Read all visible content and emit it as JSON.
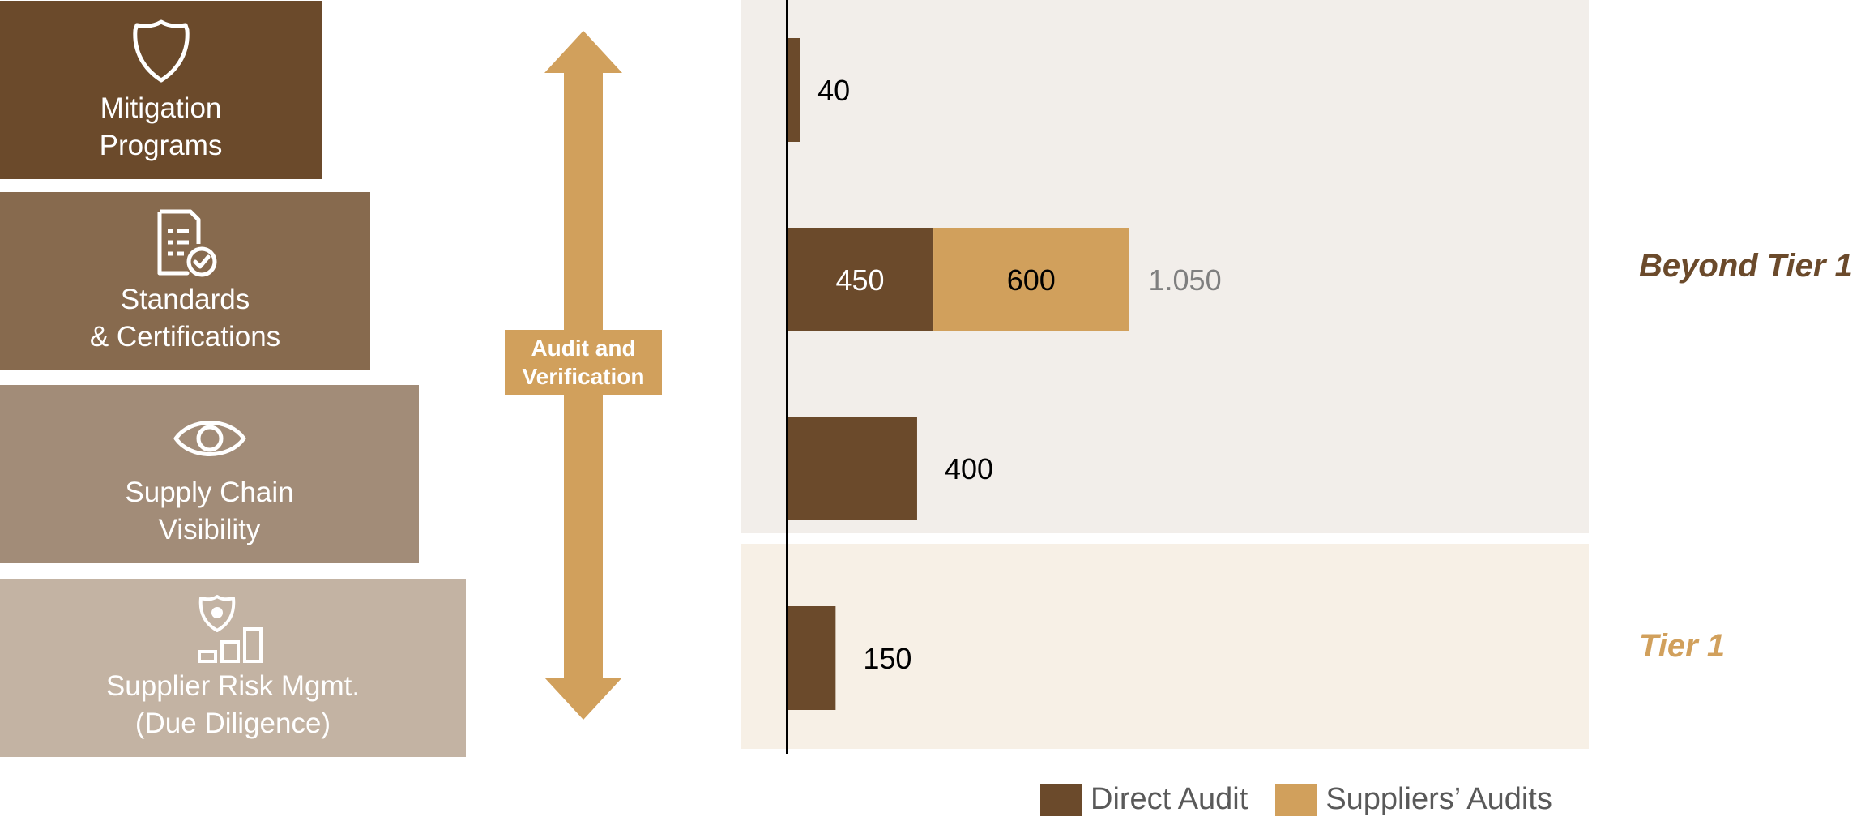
{
  "steps": [
    {
      "label": "Mitigation\nPrograms",
      "icon": "shield-icon",
      "color": "#6b4a2b"
    },
    {
      "label": "Standards\n& Certifications",
      "icon": "certified-document-icon",
      "color": "#876a4e"
    },
    {
      "label": "Supply Chain\nVisibility",
      "icon": "eye-icon",
      "color": "#a28c78"
    },
    {
      "label": "Supplier Risk Mgmt.\n(Due Diligence)",
      "icon": "risk-bar-chart-icon",
      "color": "#c3b3a3"
    }
  ],
  "arrow": {
    "label": "Audit and\nVerification",
    "color": "#d1a05c"
  },
  "groups": [
    {
      "label": "Beyond Tier 1",
      "color": "#6b4a2b",
      "band_color": "#f2eeea"
    },
    {
      "label": "Tier 1",
      "color": "#d1a05c",
      "band_color": "#f7f0e6"
    }
  ],
  "chart_data": {
    "type": "bar",
    "orientation": "horizontal",
    "stacked": true,
    "categories": [
      "Mitigation Programs",
      "Standards & Certifications",
      "Supply Chain Visibility",
      "Supplier Risk Mgmt. (Due Diligence)"
    ],
    "category_group": [
      "Beyond Tier 1",
      "Beyond Tier 1",
      "Beyond Tier 1",
      "Tier 1"
    ],
    "series": [
      {
        "name": "Direct Audit",
        "color": "#6b4a2b",
        "values": [
          40,
          450,
          400,
          150
        ]
      },
      {
        "name": "Suppliers’ Audits",
        "color": "#d1a05c",
        "values": [
          0,
          600,
          0,
          0
        ]
      }
    ],
    "value_labels": [
      {
        "category": 0,
        "series": 0,
        "text": "40"
      },
      {
        "category": 1,
        "series": 0,
        "text": "450"
      },
      {
        "category": 1,
        "series": 1,
        "text": "600"
      },
      {
        "category": 2,
        "series": 0,
        "text": "400"
      },
      {
        "category": 3,
        "series": 0,
        "text": "150"
      }
    ],
    "total_labels": [
      {
        "category": 1,
        "text": "1.050"
      }
    ],
    "xlim": [
      0,
      1400
    ],
    "grid": false,
    "legend_position": "bottom-right"
  }
}
